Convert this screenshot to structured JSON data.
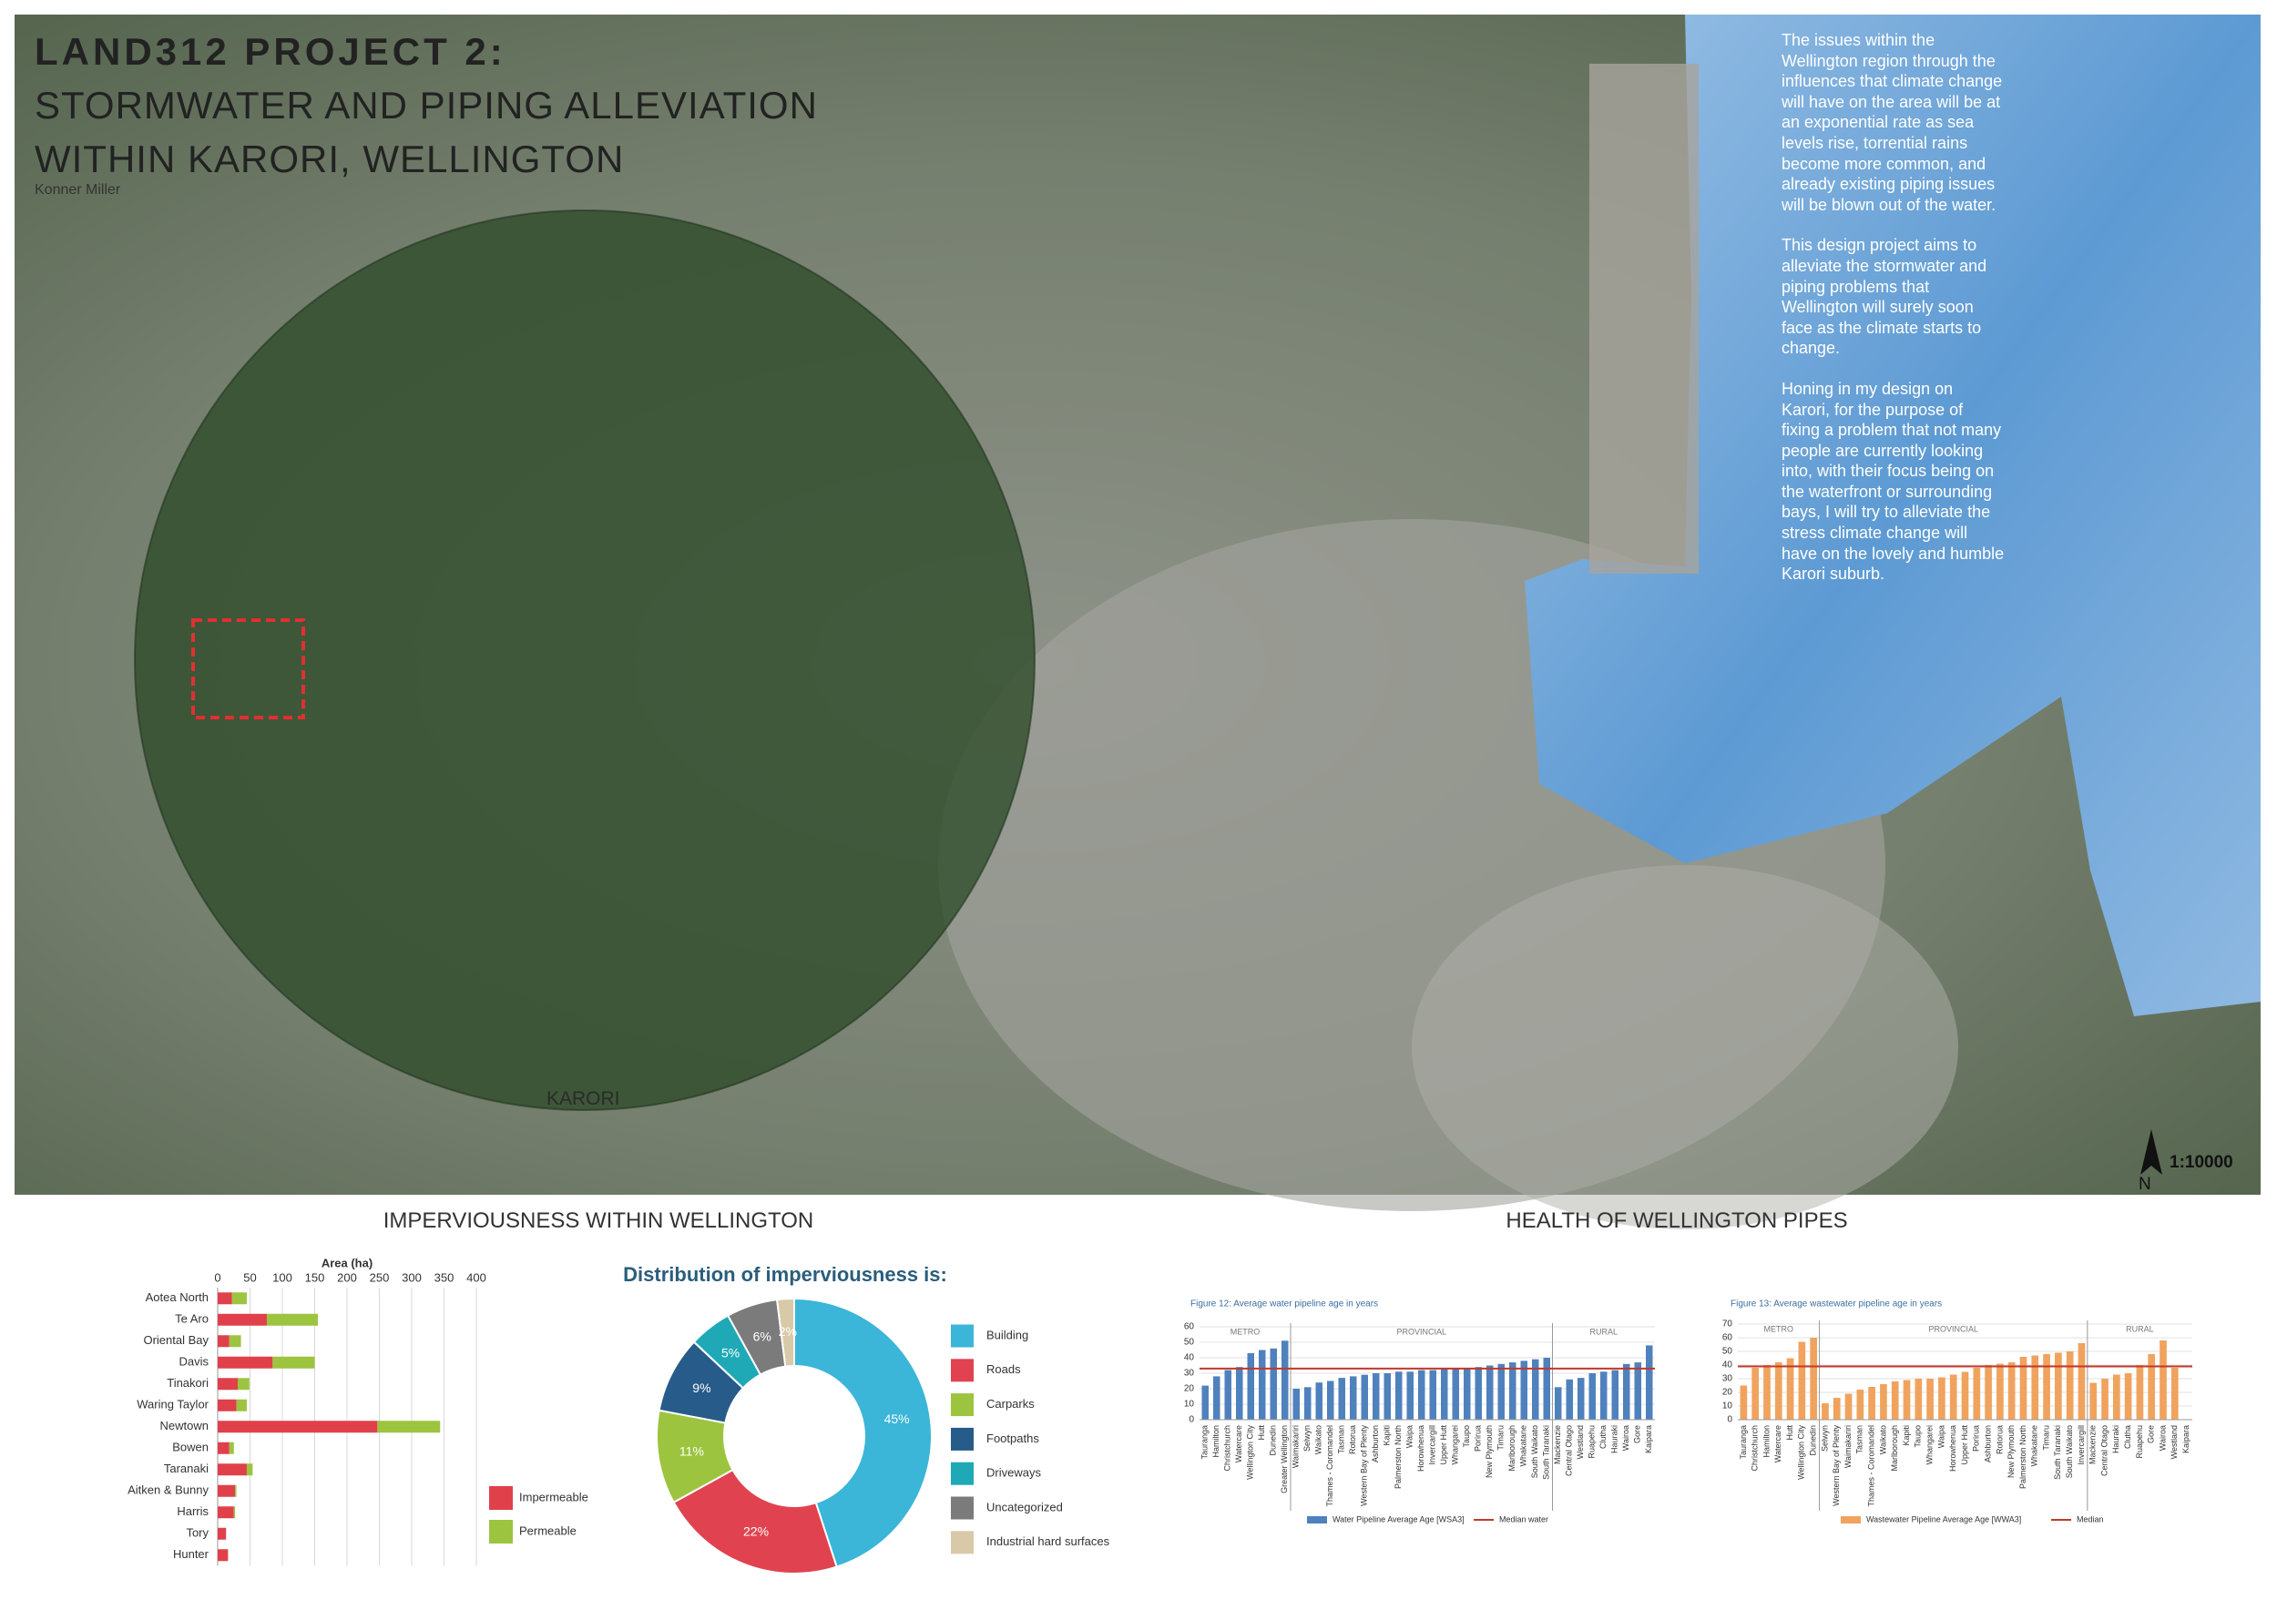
{
  "header": {
    "title": "LAND312 PROJECT 2:",
    "subtitle_lines": [
      "STORMWATER AND PIPING ALLEVIATION",
      "WITHIN KARORI, WELLINGTON"
    ],
    "author": "Konner Miller"
  },
  "map": {
    "place_label": "KARORI",
    "scale": "1:10000",
    "north": "N"
  },
  "text_column": [
    "The issues within the Wellington region through the influences that climate change will have on the area will be at an exponential rate as sea levels rise, torrential rains become more common, and already existing piping issues will be blown out of the water.",
    "This design project aims to alleviate the stormwater and piping problems that Wellington will surely soon face as the climate starts to change.",
    "Honing in my design on Karori, for the purpose of fixing a problem that not many people are currently looking into, with their focus being on the waterfront or surrounding bays, I will try to alleviate the stress climate change will have on the lovely and humble Karori suburb."
  ],
  "sections": [
    "IMPERVIOUSNESS WITHIN WELLINGTON",
    "HEALTH OF WELLINGTON PIPES"
  ],
  "chart_data": [
    {
      "type": "hbar",
      "stacked": true,
      "xlabel": "Area (ha)",
      "categories": [
        "Aotea North",
        "Te Aro",
        "Oriental Bay",
        "Davis",
        "Tinakori",
        "Waring Taylor",
        "Newtown",
        "Bowen",
        "Taranaki",
        "Aitken & Bunny",
        "Harris",
        "Tory",
        "Hunter"
      ],
      "series": [
        {
          "name": "Impermeable",
          "color": "#e0404a",
          "values": [
            22,
            76,
            18,
            85,
            31,
            29,
            247,
            18,
            45,
            27,
            25,
            13,
            16
          ]
        },
        {
          "name": "Permeable",
          "color": "#9cc43f",
          "values": [
            23,
            79,
            18,
            65,
            18,
            16,
            97,
            7,
            9,
            2,
            2,
            0,
            0
          ]
        }
      ],
      "xlim": [
        0,
        400
      ],
      "xticks": [
        0,
        50,
        100,
        150,
        200,
        250,
        300,
        350,
        400
      ],
      "grid": true
    },
    {
      "type": "donut",
      "title": "Distribution of imperviousness is:",
      "categories": [
        "Building",
        "Roads",
        "Carparks",
        "Footpaths",
        "Driveways",
        "Uncategorized",
        "Industrial hard surfaces"
      ],
      "values": [
        45,
        22,
        11,
        9,
        5,
        6,
        2
      ],
      "value_labels": [
        "45%",
        "22%",
        "11%",
        "9%",
        "5%",
        "6%",
        "2%"
      ],
      "colors": [
        "#3bb5d8",
        "#e0434f",
        "#9cc43f",
        "#265b8a",
        "#1fa9b6",
        "#7b7b7b",
        "#d8c9a8"
      ]
    },
    {
      "type": "column",
      "title": "Figure 12: Average water pipeline age in years",
      "group_labels": [
        "METRO",
        "PROVINCIAL",
        "RURAL"
      ],
      "categories": [
        "Tauranga",
        "Hamilton",
        "Christchurch",
        "Watercare",
        "Wellington City",
        "Hutt",
        "Dunedin",
        "Greater Wellington",
        "Waimakariri",
        "Selwyn",
        "Waikato",
        "Thames - Coromandel",
        "Tasman",
        "Rotorua",
        "Western Bay of Plenty",
        "Ashburton",
        "Kapiti",
        "Palmerston North",
        "Waipa",
        "Horowhenua",
        "Invercargill",
        "Upper Hutt",
        "Whangarei",
        "Taupo",
        "Porirua",
        "New Plymouth",
        "Timaru",
        "Marlborough",
        "Whakatane",
        "South Waikato",
        "South Taranaki",
        "Mackenzie",
        "Central Otago",
        "Westland",
        "Ruapehu",
        "Clutha",
        "Hauraki",
        "Wairoa",
        "Gore",
        "Kaipara"
      ],
      "series": [
        {
          "name": "Water Pipeline Average Age [WSA3]",
          "color": "#4f81bd",
          "values": [
            22,
            28,
            32,
            34,
            43,
            45,
            46,
            51,
            20,
            21,
            24,
            25,
            27,
            28,
            29,
            30,
            30,
            31,
            31,
            32,
            32,
            33,
            33,
            33,
            34,
            35,
            36,
            37,
            38,
            39,
            40,
            21,
            26,
            27,
            30,
            31,
            32,
            36,
            37,
            48
          ]
        }
      ],
      "reference_line": {
        "name": "Median water",
        "color": "#c0392b",
        "value": 33
      },
      "ylim": [
        0,
        60
      ],
      "yticks": [
        0,
        10,
        20,
        30,
        40,
        50,
        60
      ],
      "grid": true
    },
    {
      "type": "column",
      "title": "Figure 13: Average wastewater pipeline age in years",
      "group_labels": [
        "METRO",
        "PROVINCIAL",
        "RURAL"
      ],
      "categories": [
        "Tauranga",
        "Christchurch",
        "Hamilton",
        "Watercare",
        "Hutt",
        "Wellington City",
        "Dunedin",
        "Selwyn",
        "Western Bay of Plenty",
        "Waimakariri",
        "Tasman",
        "Thames - Coromandel",
        "Waikato",
        "Marlborough",
        "Kapiti",
        "Taupo",
        "Whangarei",
        "Waipa",
        "Horowhenua",
        "Upper Hutt",
        "Porirua",
        "Ashburton",
        "Rotorua",
        "New Plymouth",
        "Palmerston North",
        "Whakatane",
        "Timaru",
        "South Taranaki",
        "South Waikato",
        "Invercargill",
        "Mackenzie",
        "Central Otago",
        "Hauraki",
        "Clutha",
        "Ruapehu",
        "Gore",
        "Wairoa",
        "Westland",
        "Kaipara"
      ],
      "series": [
        {
          "name": "Wastewater Pipeline Average Age [WWA3]",
          "color": "#f0a35e",
          "values": [
            25,
            38,
            40,
            42,
            45,
            57,
            60,
            12,
            16,
            19,
            22,
            24,
            26,
            28,
            29,
            30,
            30,
            31,
            33,
            35,
            38,
            40,
            41,
            42,
            46,
            47,
            48,
            49,
            50,
            56,
            27,
            30,
            33,
            34,
            40,
            48,
            58,
            38,
            null
          ]
        }
      ],
      "reference_line": {
        "name": "Median",
        "color": "#c0392b",
        "value": 39
      },
      "ylim": [
        0,
        70
      ],
      "yticks": [
        0,
        10,
        20,
        30,
        40,
        50,
        60,
        70
      ],
      "grid": true
    }
  ]
}
